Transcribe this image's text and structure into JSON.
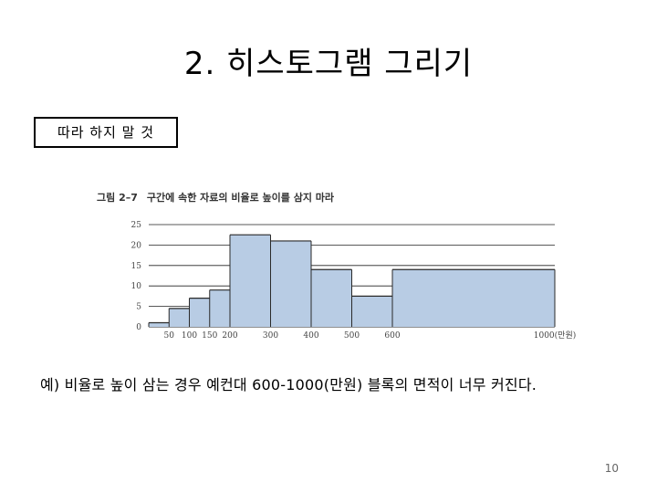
{
  "slide": {
    "title": "2. 히스토그램 그리기",
    "warning": "따라 하지 말 것",
    "figure_number": "그림 2–7",
    "figure_caption": "구간에 속한 자료의 비율로 높이를 삼지 마라",
    "example_text": "예) 비율로 높이 삼는 경우 예컨대 600-1000(만원) 블록의 면적이 너무 커진다.",
    "page_number": "10"
  },
  "chart_data": {
    "type": "bar",
    "title": "구간에 속한 자료의 비율로 높이를 삼지 마라",
    "xlabel": "",
    "ylabel": "",
    "bins": [
      {
        "start": 0,
        "end": 50,
        "value": 1
      },
      {
        "start": 50,
        "end": 100,
        "value": 4.5
      },
      {
        "start": 100,
        "end": 150,
        "value": 7
      },
      {
        "start": 150,
        "end": 200,
        "value": 9
      },
      {
        "start": 200,
        "end": 300,
        "value": 22.5
      },
      {
        "start": 300,
        "end": 400,
        "value": 21
      },
      {
        "start": 400,
        "end": 500,
        "value": 14
      },
      {
        "start": 500,
        "end": 600,
        "value": 7.5
      },
      {
        "start": 600,
        "end": 1000,
        "value": 14
      }
    ],
    "y_ticks": [
      "0",
      "5",
      "10",
      "15",
      "20",
      "25"
    ],
    "x_tick_labels": [
      {
        "value": 50,
        "label": "50"
      },
      {
        "value": 100,
        "label": "100"
      },
      {
        "value": 150,
        "label": "150"
      },
      {
        "value": 200,
        "label": "200"
      },
      {
        "value": 300,
        "label": "300"
      },
      {
        "value": 400,
        "label": "400"
      },
      {
        "value": 500,
        "label": "500"
      },
      {
        "value": 600,
        "label": "600"
      },
      {
        "value": 1000,
        "label": "1000(만원)"
      }
    ],
    "ylim": [
      0,
      25
    ],
    "xlim": [
      0,
      1000
    ],
    "grid": true,
    "colors": {
      "bar": "#b8cce4",
      "edge": "#2a2a2a",
      "grid": "#222222"
    }
  }
}
